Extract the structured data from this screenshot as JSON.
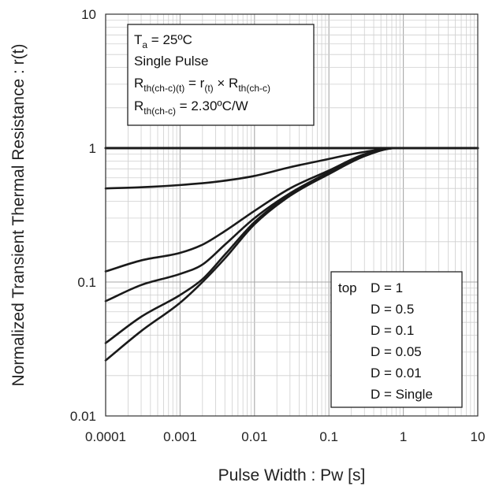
{
  "chart_data": {
    "type": "line",
    "x_scale": "log",
    "y_scale": "log",
    "xlim": [
      0.0001,
      10
    ],
    "ylim": [
      0.01,
      10
    ],
    "grid": true,
    "xlabel": "Pulse Width : Pw [s]",
    "ylabel": "Normalized Transient Thermal Resistance : r(t)",
    "x_ticks": [
      "0.0001",
      "0.001",
      "0.01",
      "0.1",
      "1",
      "10"
    ],
    "y_ticks": [
      "0.01",
      "0.1",
      "1",
      "10"
    ],
    "conditions_box": {
      "line1": {
        "main": "T",
        "sub": "a",
        "rest": " = 25ºC"
      },
      "line2": "Single Pulse",
      "line3": {
        "a": "R",
        "a_sub": "th(ch-c)(t)",
        "b": " = r",
        "b_sub": "(t)",
        "c": " × R",
        "c_sub": "th(ch-c)"
      },
      "line4": {
        "a": "R",
        "a_sub": "th(ch-c)",
        "b": " = 2.30ºC/W"
      }
    },
    "legend": {
      "position": "bottom-right",
      "prefix": "top",
      "entries": [
        "D = 1",
        "D = 0.5",
        "D = 0.1",
        "D = 0.05",
        "D = 0.01",
        "D = Single"
      ]
    },
    "series": [
      {
        "x": [
          0.0001,
          10
        ],
        "y": [
          1,
          1
        ]
      },
      {
        "x": [
          0.0001,
          0.0003,
          0.001,
          0.003,
          0.01,
          0.03,
          0.1,
          0.2,
          0.4,
          0.8,
          10
        ],
        "y": [
          0.5,
          0.51,
          0.53,
          0.56,
          0.62,
          0.72,
          0.83,
          0.9,
          0.96,
          1.0,
          1.0
        ]
      },
      {
        "x": [
          0.0001,
          0.0003,
          0.001,
          0.002,
          0.004,
          0.01,
          0.03,
          0.1,
          0.3,
          0.8,
          10
        ],
        "y": [
          0.12,
          0.145,
          0.165,
          0.19,
          0.24,
          0.34,
          0.5,
          0.68,
          0.9,
          1.0,
          1.0
        ]
      },
      {
        "x": [
          0.0001,
          0.0003,
          0.001,
          0.002,
          0.004,
          0.01,
          0.03,
          0.1,
          0.3,
          0.8,
          10
        ],
        "y": [
          0.072,
          0.095,
          0.115,
          0.135,
          0.19,
          0.3,
          0.46,
          0.66,
          0.88,
          1.0,
          1.0
        ]
      },
      {
        "x": [
          0.0001,
          0.0003,
          0.001,
          0.002,
          0.004,
          0.01,
          0.03,
          0.1,
          0.3,
          0.8,
          10
        ],
        "y": [
          0.035,
          0.055,
          0.08,
          0.105,
          0.16,
          0.28,
          0.45,
          0.65,
          0.88,
          1.0,
          1.0
        ]
      },
      {
        "x": [
          0.0001,
          0.0003,
          0.001,
          0.002,
          0.004,
          0.01,
          0.03,
          0.1,
          0.3,
          0.8,
          10
        ],
        "y": [
          0.026,
          0.043,
          0.07,
          0.1,
          0.15,
          0.27,
          0.44,
          0.64,
          0.87,
          1.0,
          1.0
        ]
      }
    ]
  }
}
